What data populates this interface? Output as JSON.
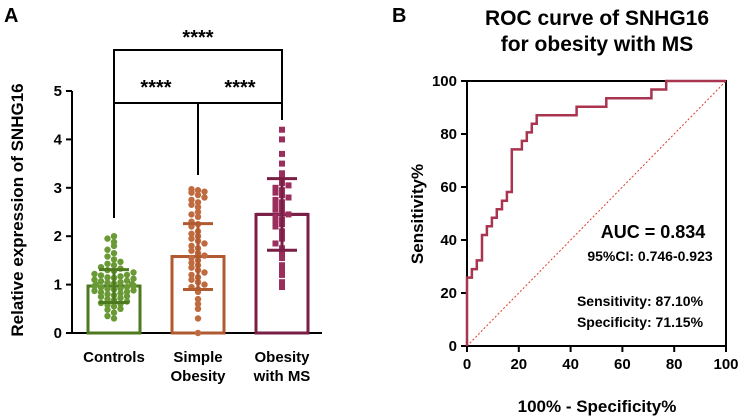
{
  "chart_data": [
    {
      "panel": "A",
      "type": "bar",
      "title": "",
      "xlabel": "",
      "ylabel": "Relative expression of SNHG16",
      "ylim": [
        0,
        5
      ],
      "yticks": [
        "0",
        "1",
        "2",
        "3",
        "4",
        "5"
      ],
      "categories": [
        {
          "line1": "Controls",
          "line2": ""
        },
        {
          "line1": "Simple",
          "line2": "Obesity"
        },
        {
          "line1": "Obesity",
          "line2": "with MS"
        }
      ],
      "colors": [
        "#4e7a1f",
        "#b05a30",
        "#7a1e46"
      ],
      "point_colors": [
        "#6a9a35",
        "#c06a40",
        "#9a2f5e"
      ],
      "means": [
        0.97,
        1.58,
        2.45
      ],
      "sd": [
        0.34,
        0.68,
        0.74
      ],
      "points": [
        [
          0.3,
          0.35,
          0.42,
          0.48,
          0.5,
          0.55,
          0.58,
          0.6,
          0.62,
          0.65,
          0.68,
          0.7,
          0.72,
          0.75,
          0.76,
          0.78,
          0.8,
          0.82,
          0.84,
          0.85,
          0.87,
          0.88,
          0.9,
          0.91,
          0.92,
          0.94,
          0.95,
          0.97,
          0.98,
          1.0,
          1.01,
          1.02,
          1.04,
          1.05,
          1.07,
          1.08,
          1.1,
          1.12,
          1.14,
          1.15,
          1.17,
          1.19,
          1.2,
          1.22,
          1.25,
          1.28,
          1.3,
          1.33,
          1.36,
          1.4,
          1.43,
          1.47,
          1.52,
          1.58,
          1.65,
          1.72,
          1.8,
          1.88,
          1.95,
          2.0
        ],
        [
          0.0,
          0.3,
          0.5,
          0.6,
          0.7,
          0.85,
          0.9,
          0.95,
          1.0,
          1.05,
          1.1,
          1.15,
          1.2,
          1.25,
          1.3,
          1.35,
          1.4,
          1.45,
          1.5,
          1.55,
          1.6,
          1.65,
          1.7,
          1.75,
          1.8,
          1.85,
          1.9,
          1.95,
          2.0,
          2.05,
          2.1,
          2.2,
          2.25,
          2.3,
          2.4,
          2.45,
          2.5,
          2.6,
          2.65,
          2.7,
          2.75,
          2.8,
          2.85,
          2.9,
          2.92,
          2.95,
          2.97
        ],
        [
          0.95,
          1.05,
          1.2,
          1.3,
          1.4,
          1.55,
          1.65,
          1.75,
          1.85,
          1.95,
          2.05,
          2.1,
          2.2,
          2.25,
          2.3,
          2.35,
          2.4,
          2.45,
          2.5,
          2.55,
          2.6,
          2.65,
          2.7,
          2.75,
          2.8,
          2.85,
          2.9,
          2.95,
          3.0,
          3.05,
          3.1,
          3.2,
          3.3,
          3.5,
          3.7,
          4.0,
          4.2
        ]
      ],
      "significance": [
        {
          "from": 0,
          "to": 1,
          "label": "****"
        },
        {
          "from": 1,
          "to": 2,
          "label": "****"
        },
        {
          "from": 0,
          "to": 2,
          "label": "****"
        }
      ]
    },
    {
      "panel": "B",
      "type": "line",
      "title_line1": "ROC curve of SNHG16",
      "title_line2": "for obesity with MS",
      "xlabel": "100% - Specificity%",
      "ylabel": "Sensitivity%",
      "xlim": [
        0,
        100
      ],
      "ylim": [
        0,
        100
      ],
      "xticks": [
        "0",
        "20",
        "40",
        "60",
        "80",
        "100"
      ],
      "yticks": [
        "0",
        "20",
        "40",
        "60",
        "80",
        "100"
      ],
      "roc_color": "#a8344f",
      "reference_color": "#e03a2a",
      "roc_x": [
        0,
        0,
        1.9,
        1.9,
        3.8,
        3.8,
        5.8,
        5.8,
        7.7,
        7.7,
        9.6,
        9.6,
        11.5,
        11.5,
        13.5,
        13.5,
        15.4,
        15.4,
        17.3,
        17.3,
        21.2,
        21.2,
        23.1,
        23.1,
        25,
        25,
        26.9,
        26.9,
        28.8,
        28.8,
        42.3,
        42.3,
        53.8,
        53.8,
        61.5,
        61.5,
        71.2,
        71.2,
        76.9,
        76.9,
        100
      ],
      "roc_y": [
        0,
        25.8,
        25.8,
        29,
        29,
        32.3,
        32.3,
        41.9,
        41.9,
        45.2,
        45.2,
        48.4,
        48.4,
        51.6,
        51.6,
        54.8,
        54.8,
        58.1,
        58.1,
        74.2,
        74.2,
        77.4,
        77.4,
        80.6,
        80.6,
        83.9,
        83.9,
        87.1,
        87.1,
        87.1,
        87.1,
        90.3,
        90.3,
        93.5,
        93.5,
        93.5,
        93.5,
        96.8,
        96.8,
        100,
        100
      ],
      "auc_label": "AUC = 0.834",
      "ci_label": "95%CI: 0.746-0.923",
      "sensitivity_label": "Sensitivity: 87.10%",
      "specificity_label": "Specificity: 71.15%"
    }
  ]
}
